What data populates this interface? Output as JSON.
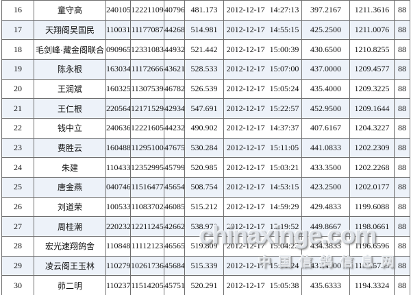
{
  "table": {
    "rows": [
      [
        "16",
        "童守高",
        "240105",
        "12221109",
        "40796",
        "481.173",
        "2012-12-17 14:27:13",
        "397.2167",
        "1211.3616",
        "88"
      ],
      [
        "17",
        "天翔阁吴国民",
        "110031",
        "11177087",
        "44268",
        "514.981",
        "2012-12-17 14:55:15",
        "425.2500",
        "1211.0076",
        "88"
      ],
      [
        "18",
        "毛剑峰·藏金阁联合",
        "090965",
        "12331083",
        "44932",
        "521.442",
        "2012-12-17 15:00:39",
        "430.6500",
        "1210.8255",
        "88"
      ],
      [
        "19",
        "陈永根",
        "163034",
        "11172666",
        "43621",
        "528.533",
        "2012-12-17 15:07:00",
        "437.0000",
        "1209.4577",
        "88"
      ],
      [
        "20",
        "王润斌",
        "160325",
        "11307539",
        "46782",
        "526.539",
        "2012-12-17 15:05:24",
        "435.4000",
        "1209.3225",
        "88"
      ],
      [
        "21",
        "王仁根",
        "220564",
        "12171529",
        "42934",
        "547.691",
        "2012-12-17 15:22:57",
        "452.9500",
        "1209.1644",
        "88"
      ],
      [
        "22",
        "钱中立",
        "240636",
        "12221605",
        "44232",
        "490.902",
        "2012-12-17 14:37:37",
        "407.6167",
        "1204.3227",
        "88"
      ],
      [
        "23",
        "费胜云",
        "160488",
        "11295100",
        "47675",
        "530.284",
        "2012-12-17 15:11:05",
        "441.0833",
        "1202.2309",
        "88"
      ],
      [
        "24",
        "朱建",
        "110433",
        "12352995",
        "45799",
        "520.985",
        "2012-12-17 15:03:21",
        "433.3500",
        "1202.2268",
        "88"
      ],
      [
        "25",
        "唐金燕",
        "040746",
        "11516477",
        "45654",
        "508.754",
        "2012-12-17 14:53:15",
        "423.2500",
        "1202.0177",
        "88"
      ],
      [
        "26",
        "刘道荣",
        "100533",
        "11083702",
        "46085",
        "515.212",
        "2012-12-17 14:59:29",
        "429.4833",
        "1199.6088",
        "88"
      ],
      [
        "27",
        "周桂潮",
        "220232",
        "12211245",
        "42662",
        "538.970",
        "2012-12-17 15:19:52",
        "449.8667",
        "1198.0661",
        "88"
      ],
      [
        "28",
        "宏光速翔鸽舍",
        "110848",
        "11112123",
        "46565",
        "519.809",
        "2012-12-17 15:04:23",
        "434.3833",
        "1196.6596",
        "88"
      ],
      [
        "29",
        "凌云阁王玉林",
        "110279",
        "10261736",
        "45684",
        "515.339",
        "2012-12-17 15:01:24",
        "431.4000",
        "1194.5735",
        "88"
      ],
      [
        "30",
        "茆二明",
        "110237",
        "11514205",
        "45751",
        "520.291",
        "2012-12-17 15:05:38",
        "435.6333",
        "1194.3324",
        "88"
      ]
    ]
  },
  "watermark": {
    "site": "chinaxinge.com",
    "name": "中国信鸽信息网"
  },
  "colors": {
    "row_alt": "#edf2f9",
    "grid_border": "#6e6e6e",
    "text": "#111111",
    "watermark_gray": "#d8dde3"
  }
}
